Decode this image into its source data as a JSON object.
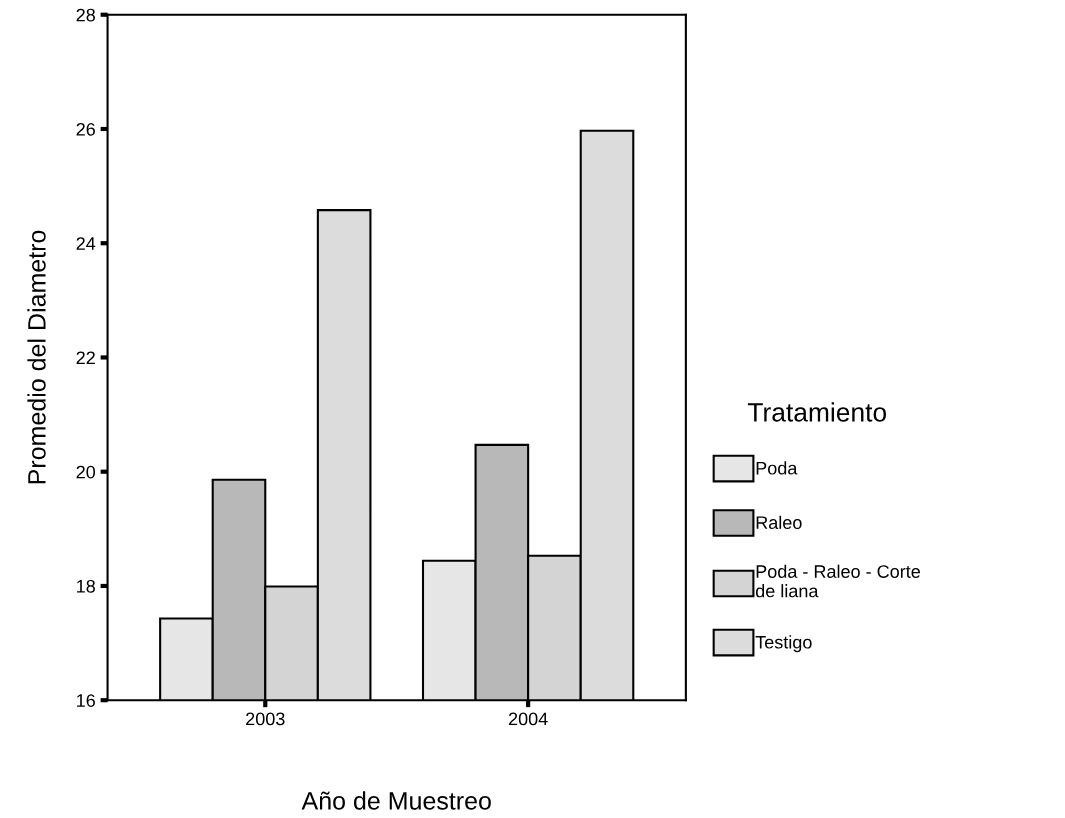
{
  "chart_data": {
    "type": "bar",
    "xlabel": "Año de Muestreo",
    "ylabel": "Promedio del Diametro",
    "legend_title": "Tratamiento",
    "categories": [
      "2003",
      "2004"
    ],
    "series": [
      {
        "name": "Poda",
        "color": "#e6e6e6",
        "values": [
          17.43,
          18.44
        ]
      },
      {
        "name": "Raleo",
        "color": "#b8b8b8",
        "values": [
          19.86,
          20.47
        ]
      },
      {
        "name": "Poda - Raleo - Corte\nde liana",
        "color": "#d4d4d4",
        "values": [
          17.99,
          18.53
        ]
      },
      {
        "name": "Testigo",
        "color": "#dcdcdc",
        "values": [
          24.58,
          25.97
        ]
      }
    ],
    "ylim": [
      16,
      28
    ],
    "yticks": [
      16,
      18,
      20,
      22,
      24,
      26,
      28
    ],
    "legend": "right",
    "grid": false
  }
}
